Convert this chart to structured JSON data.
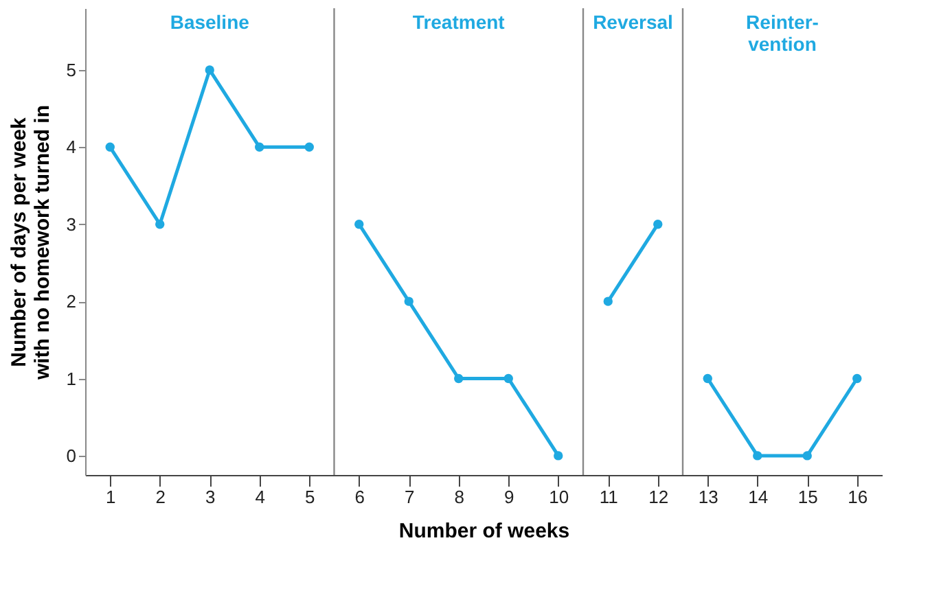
{
  "chart_data": {
    "type": "line",
    "xlabel": "Number of weeks",
    "ylabel": "Number of days per week\nwith no homework turned in",
    "series": [
      {
        "color": "#1fa9e1",
        "x": [
          1,
          2,
          3,
          4,
          5
        ],
        "values": [
          4,
          3,
          5,
          4,
          4
        ]
      },
      {
        "color": "#1fa9e1",
        "x": [
          6,
          7,
          8,
          9,
          10
        ],
        "values": [
          3,
          2,
          1,
          1,
          0
        ]
      },
      {
        "color": "#1fa9e1",
        "x": [
          11,
          12
        ],
        "values": [
          2,
          3
        ]
      },
      {
        "color": "#1fa9e1",
        "x": [
          13,
          14,
          15,
          16
        ],
        "values": [
          1,
          0,
          0,
          1
        ]
      }
    ],
    "xlim": [
      0.5,
      16.5
    ],
    "xticks": [
      1,
      2,
      3,
      4,
      5,
      6,
      7,
      8,
      9,
      10,
      11,
      12,
      13,
      14,
      15,
      16
    ],
    "ylim": [
      -0.25,
      5.8
    ],
    "yticks": [
      0,
      1,
      2,
      3,
      4,
      5
    ],
    "ref_lines": [
      {
        "axis": "x",
        "value": 5.5,
        "color": "#888888"
      },
      {
        "axis": "x",
        "value": 10.5,
        "color": "#888888"
      },
      {
        "axis": "x",
        "value": 12.5,
        "color": "#888888"
      }
    ],
    "annotations": [
      "Baseline",
      "Treatment",
      "Reversal",
      "Reinter-\nvention"
    ],
    "grid": false,
    "marker": "circle",
    "line_style": "solid"
  }
}
